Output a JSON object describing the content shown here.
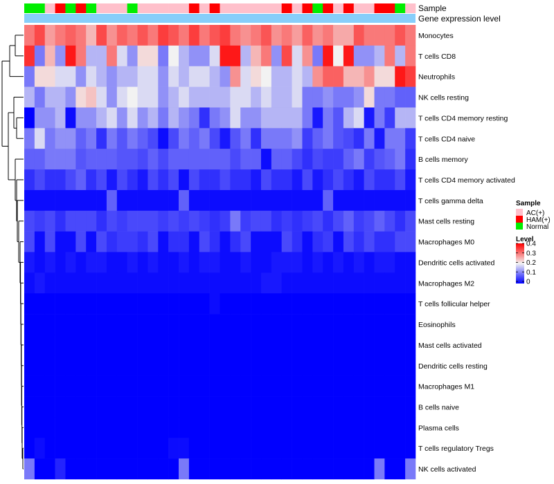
{
  "chart_data": {
    "type": "heatmap",
    "title": "",
    "annotation_labels": [
      "Sample",
      "Gene expression level"
    ],
    "gene_expression_color": "#87cefa",
    "legend": {
      "sample_title": "Sample",
      "sample_items": [
        {
          "label": "AC(+)",
          "color": "#ffc0cb"
        },
        {
          "label": "HAM(+)",
          "color": "#ff0000"
        },
        {
          "label": "Normal",
          "color": "#00ee00"
        }
      ],
      "level_title": "Level",
      "level_ticks": [
        "0.4",
        "0.3",
        "0.2",
        "0.1",
        "0"
      ],
      "level_range": [
        0,
        0.4
      ]
    },
    "colors": {
      "low": "#0000ff",
      "mid": "#f2f2f2",
      "high": "#ff0000"
    },
    "sample_groups": [
      "Normal",
      "Normal",
      "AC(+)",
      "HAM(+)",
      "Normal",
      "HAM(+)",
      "Normal",
      "AC(+)",
      "AC(+)",
      "AC(+)",
      "Normal",
      "AC(+)",
      "AC(+)",
      "AC(+)",
      "AC(+)",
      "AC(+)",
      "HAM(+)",
      "AC(+)",
      "HAM(+)",
      "AC(+)",
      "AC(+)",
      "AC(+)",
      "AC(+)",
      "AC(+)",
      "AC(+)",
      "HAM(+)",
      "AC(+)",
      "HAM(+)",
      "Normal",
      "HAM(+)",
      "AC(+)",
      "HAM(+)",
      "AC(+)",
      "AC(+)",
      "HAM(+)",
      "HAM(+)",
      "Normal",
      "AC(+)"
    ],
    "rows": [
      "Monocytes",
      "T cells CD8",
      "Neutrophils",
      "NK cells resting",
      "T cells CD4 memory resting",
      "T cells CD4 naive",
      "B cells memory",
      "T cells CD4 memory activated",
      "T cells gamma delta",
      "Mast cells resting",
      "Macrophages M0",
      "Dendritic cells activated",
      "Macrophages M2",
      "T cells follicular helper",
      "Eosinophils",
      "Mast cells activated",
      "Dendritic cells resting",
      "Macrophages M1",
      "B cells naive",
      "Plasma cells",
      "T cells regulatory  Tregs",
      "NK cells activated"
    ],
    "values": [
      [
        0.3,
        0.34,
        0.27,
        0.3,
        0.32,
        0.3,
        0.25,
        0.34,
        0.28,
        0.32,
        0.3,
        0.33,
        0.3,
        0.35,
        0.33,
        0.3,
        0.35,
        0.3,
        0.33,
        0.35,
        0.3,
        0.28,
        0.3,
        0.33,
        0.28,
        0.3,
        0.27,
        0.32,
        0.28,
        0.3,
        0.26,
        0.26,
        0.33,
        0.3,
        0.3,
        0.3,
        0.33,
        0.3
      ],
      [
        0.36,
        0.1,
        0.25,
        0.12,
        0.38,
        0.3,
        0.15,
        0.15,
        0.3,
        0.18,
        0.12,
        0.22,
        0.22,
        0.1,
        0.2,
        0.15,
        0.12,
        0.12,
        0.18,
        0.38,
        0.38,
        0.15,
        0.25,
        0.3,
        0.12,
        0.34,
        0.18,
        0.28,
        0.1,
        0.38,
        0.2,
        0.38,
        0.12,
        0.12,
        0.15,
        0.3,
        0.15,
        0.3
      ],
      [
        0.1,
        0.22,
        0.22,
        0.18,
        0.18,
        0.12,
        0.18,
        0.15,
        0.12,
        0.15,
        0.15,
        0.18,
        0.18,
        0.12,
        0.18,
        0.15,
        0.18,
        0.18,
        0.15,
        0.12,
        0.28,
        0.18,
        0.22,
        0.2,
        0.15,
        0.15,
        0.18,
        0.15,
        0.28,
        0.32,
        0.32,
        0.25,
        0.25,
        0.28,
        0.22,
        0.22,
        0.38,
        0.35
      ],
      [
        0.15,
        0.1,
        0.15,
        0.15,
        0.12,
        0.22,
        0.24,
        0.18,
        0.12,
        0.18,
        0.2,
        0.18,
        0.18,
        0.12,
        0.15,
        0.18,
        0.15,
        0.15,
        0.15,
        0.15,
        0.18,
        0.18,
        0.15,
        0.18,
        0.15,
        0.15,
        0.18,
        0.1,
        0.1,
        0.12,
        0.1,
        0.1,
        0.12,
        0.22,
        0.1,
        0.1,
        0.08,
        0.08
      ],
      [
        0.0,
        0.12,
        0.12,
        0.15,
        0.01,
        0.12,
        0.12,
        0.15,
        0.18,
        0.12,
        0.18,
        0.12,
        0.15,
        0.1,
        0.15,
        0.12,
        0.1,
        0.04,
        0.1,
        0.12,
        0.18,
        0.12,
        0.12,
        0.15,
        0.15,
        0.15,
        0.15,
        0.1,
        0.02,
        0.1,
        0.07,
        0.15,
        0.18,
        0.02,
        0.1,
        0.05,
        0.15,
        0.15
      ],
      [
        0.1,
        0.18,
        0.1,
        0.12,
        0.12,
        0.08,
        0.1,
        0.04,
        0.1,
        0.07,
        0.1,
        0.08,
        0.06,
        0.01,
        0.06,
        0.1,
        0.08,
        0.1,
        0.06,
        0.02,
        0.07,
        0.1,
        0.04,
        0.1,
        0.1,
        0.1,
        0.12,
        0.05,
        0.08,
        0.1,
        0.07,
        0.06,
        0.04,
        0.1,
        0.02,
        0.1,
        0.1,
        0.05
      ],
      [
        0.08,
        0.08,
        0.1,
        0.1,
        0.1,
        0.07,
        0.08,
        0.08,
        0.08,
        0.07,
        0.07,
        0.06,
        0.08,
        0.06,
        0.08,
        0.08,
        0.08,
        0.08,
        0.08,
        0.08,
        0.06,
        0.08,
        0.08,
        0.01,
        0.08,
        0.08,
        0.06,
        0.04,
        0.06,
        0.05,
        0.05,
        0.08,
        0.1,
        0.05,
        0.07,
        0.08,
        0.1,
        0.04
      ],
      [
        0.04,
        0.06,
        0.04,
        0.04,
        0.06,
        0.08,
        0.04,
        0.06,
        0.02,
        0.06,
        0.04,
        0.02,
        0.06,
        0.04,
        0.06,
        0.01,
        0.06,
        0.04,
        0.04,
        0.06,
        0.04,
        0.04,
        0.02,
        0.06,
        0.04,
        0.04,
        0.02,
        0.06,
        0.02,
        0.04,
        0.06,
        0.04,
        0.02,
        0.06,
        0.04,
        0.04,
        0.06,
        0.02
      ],
      [
        0.01,
        0.01,
        0.01,
        0.01,
        0.01,
        0.01,
        0.01,
        0.01,
        0.08,
        0.01,
        0.01,
        0.01,
        0.01,
        0.01,
        0.01,
        0.08,
        0.01,
        0.01,
        0.01,
        0.01,
        0.01,
        0.01,
        0.01,
        0.01,
        0.01,
        0.01,
        0.01,
        0.01,
        0.01,
        0.08,
        0.01,
        0.01,
        0.01,
        0.01,
        0.01,
        0.01,
        0.01,
        0.01
      ],
      [
        0.06,
        0.05,
        0.06,
        0.04,
        0.06,
        0.06,
        0.06,
        0.04,
        0.06,
        0.05,
        0.06,
        0.06,
        0.06,
        0.05,
        0.06,
        0.05,
        0.06,
        0.05,
        0.04,
        0.05,
        0.1,
        0.05,
        0.06,
        0.06,
        0.04,
        0.05,
        0.04,
        0.05,
        0.06,
        0.04,
        0.06,
        0.08,
        0.05,
        0.06,
        0.08,
        0.06,
        0.04,
        0.06
      ],
      [
        0.06,
        0.01,
        0.06,
        0.01,
        0.01,
        0.06,
        0.01,
        0.06,
        0.04,
        0.05,
        0.05,
        0.04,
        0.06,
        0.01,
        0.04,
        0.04,
        0.01,
        0.06,
        0.04,
        0.01,
        0.04,
        0.06,
        0.01,
        0.01,
        0.01,
        0.06,
        0.04,
        0.01,
        0.04,
        0.05,
        0.01,
        0.06,
        0.04,
        0.06,
        0.04,
        0.04,
        0.06,
        0.06
      ],
      [
        0.02,
        0.01,
        0.02,
        0.01,
        0.02,
        0.01,
        0.02,
        0.02,
        0.01,
        0.01,
        0.02,
        0.01,
        0.02,
        0.01,
        0.01,
        0.02,
        0.01,
        0.02,
        0.02,
        0.01,
        0.01,
        0.02,
        0.01,
        0.01,
        0.02,
        0.02,
        0.02,
        0.01,
        0.02,
        0.01,
        0.02,
        0.01,
        0.02,
        0.01,
        0.02,
        0.02,
        0.01,
        0.01
      ],
      [
        0.01,
        0.02,
        0.01,
        0.01,
        0.01,
        0.01,
        0.01,
        0.01,
        0.01,
        0.01,
        0.01,
        0.01,
        0.01,
        0.01,
        0.01,
        0.01,
        0.01,
        0.01,
        0.01,
        0.01,
        0.01,
        0.01,
        0.01,
        0.02,
        0.02,
        0.01,
        0.01,
        0.01,
        0.01,
        0.01,
        0.01,
        0.01,
        0.01,
        0.01,
        0.01,
        0.01,
        0.01,
        0.01
      ],
      [
        0.0,
        0.0,
        0.0,
        0.0,
        0.0,
        0.0,
        0.0,
        0.0,
        0.0,
        0.0,
        0.0,
        0.0,
        0.0,
        0.0,
        0.0,
        0.0,
        0.0,
        0.0,
        0.01,
        0.0,
        0.0,
        0.0,
        0.0,
        0.0,
        0.0,
        0.0,
        0.0,
        0.0,
        0.0,
        0.0,
        0.0,
        0.0,
        0.0,
        0.0,
        0.0,
        0.0,
        0.0,
        0.0
      ],
      [
        0.0,
        0.0,
        0.0,
        0.0,
        0.0,
        0.0,
        0.0,
        0.0,
        0.0,
        0.0,
        0.0,
        0.0,
        0.0,
        0.0,
        0.0,
        0.0,
        0.0,
        0.0,
        0.0,
        0.0,
        0.0,
        0.0,
        0.0,
        0.0,
        0.0,
        0.0,
        0.0,
        0.0,
        0.0,
        0.0,
        0.0,
        0.0,
        0.0,
        0.0,
        0.0,
        0.0,
        0.0,
        0.0
      ],
      [
        0.0,
        0.0,
        0.0,
        0.0,
        0.0,
        0.0,
        0.0,
        0.0,
        0.0,
        0.0,
        0.0,
        0.0,
        0.0,
        0.0,
        0.0,
        0.0,
        0.0,
        0.0,
        0.0,
        0.0,
        0.0,
        0.0,
        0.0,
        0.0,
        0.0,
        0.0,
        0.0,
        0.0,
        0.0,
        0.0,
        0.0,
        0.0,
        0.0,
        0.0,
        0.0,
        0.0,
        0.0,
        0.0
      ],
      [
        0.0,
        0.0,
        0.0,
        0.0,
        0.0,
        0.0,
        0.0,
        0.0,
        0.0,
        0.0,
        0.0,
        0.0,
        0.0,
        0.0,
        0.0,
        0.0,
        0.0,
        0.0,
        0.0,
        0.0,
        0.0,
        0.0,
        0.0,
        0.0,
        0.0,
        0.0,
        0.0,
        0.0,
        0.0,
        0.0,
        0.0,
        0.0,
        0.0,
        0.0,
        0.0,
        0.0,
        0.0,
        0.0
      ],
      [
        0.0,
        0.0,
        0.0,
        0.0,
        0.0,
        0.0,
        0.0,
        0.0,
        0.0,
        0.0,
        0.0,
        0.0,
        0.0,
        0.0,
        0.0,
        0.0,
        0.0,
        0.0,
        0.0,
        0.0,
        0.0,
        0.0,
        0.0,
        0.0,
        0.0,
        0.0,
        0.0,
        0.0,
        0.0,
        0.0,
        0.0,
        0.0,
        0.0,
        0.0,
        0.0,
        0.0,
        0.0,
        0.0
      ],
      [
        0.0,
        0.0,
        0.0,
        0.0,
        0.0,
        0.0,
        0.0,
        0.0,
        0.0,
        0.0,
        0.0,
        0.0,
        0.0,
        0.0,
        0.0,
        0.0,
        0.0,
        0.0,
        0.0,
        0.0,
        0.0,
        0.0,
        0.0,
        0.0,
        0.0,
        0.0,
        0.0,
        0.0,
        0.0,
        0.0,
        0.0,
        0.0,
        0.0,
        0.0,
        0.0,
        0.0,
        0.0,
        0.0
      ],
      [
        0.0,
        0.0,
        0.0,
        0.0,
        0.0,
        0.0,
        0.0,
        0.0,
        0.0,
        0.0,
        0.0,
        0.0,
        0.0,
        0.0,
        0.0,
        0.0,
        0.0,
        0.0,
        0.0,
        0.0,
        0.0,
        0.0,
        0.0,
        0.0,
        0.0,
        0.0,
        0.0,
        0.0,
        0.0,
        0.0,
        0.0,
        0.0,
        0.0,
        0.0,
        0.0,
        0.0,
        0.0,
        0.0
      ],
      [
        0.0,
        0.01,
        0.0,
        0.0,
        0.0,
        0.0,
        0.0,
        0.0,
        0.0,
        0.0,
        0.0,
        0.0,
        0.0,
        0.0,
        0.01,
        0.01,
        0.0,
        0.0,
        0.0,
        0.0,
        0.0,
        0.0,
        0.0,
        0.0,
        0.0,
        0.0,
        0.0,
        0.0,
        0.0,
        0.0,
        0.0,
        0.0,
        0.0,
        0.0,
        0.0,
        0.0,
        0.0,
        0.0
      ],
      [
        0.1,
        0.0,
        0.0,
        0.03,
        0.0,
        0.0,
        0.0,
        0.0,
        0.0,
        0.0,
        0.0,
        0.0,
        0.0,
        0.0,
        0.0,
        0.1,
        0.0,
        0.0,
        0.0,
        0.0,
        0.0,
        0.0,
        0.0,
        0.0,
        0.0,
        0.0,
        0.0,
        0.0,
        0.0,
        0.0,
        0.0,
        0.0,
        0.0,
        0.0,
        0.1,
        0.0,
        0.0,
        0.1
      ]
    ]
  }
}
